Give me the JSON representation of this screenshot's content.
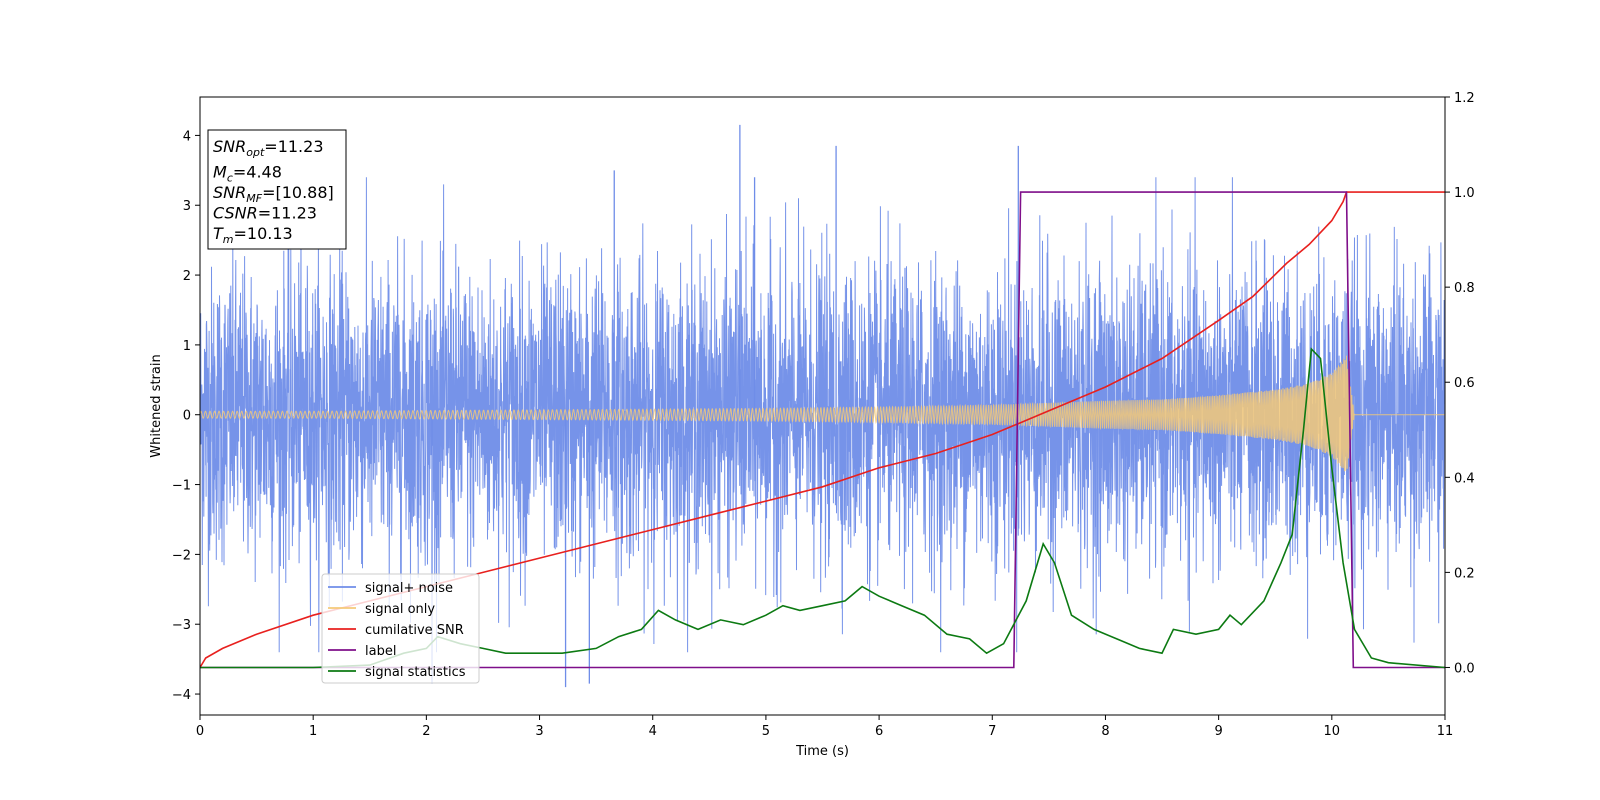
{
  "chart_data": {
    "type": "line",
    "xlabel": "Time (s)",
    "ylabel": "Whitened strain",
    "xlim": [
      0,
      11
    ],
    "ylim_left": [
      -4.3,
      4.55
    ],
    "ylim_right": [
      -0.1,
      1.2
    ],
    "x_ticks": [
      "0",
      "1",
      "2",
      "3",
      "4",
      "5",
      "6",
      "7",
      "8",
      "9",
      "10",
      "11"
    ],
    "y_left_ticks": [
      "−4",
      "−3",
      "−2",
      "−1",
      "0",
      "1",
      "2",
      "3",
      "4"
    ],
    "y_right_ticks": [
      "0.0",
      "0.2",
      "0.4",
      "0.6",
      "0.8",
      "1.0",
      "1.2"
    ],
    "grid": false,
    "legend_position": "lower-left",
    "annotation": {
      "lines": [
        {
          "main": "SNR",
          "sub": "opt",
          "rest": "=11.23"
        },
        {
          "main": "M",
          "sub": "c",
          "rest": "=4.48"
        },
        {
          "main": "SNR",
          "sub": "MF",
          "rest": "=[10.88]"
        },
        {
          "main": "CSNR",
          "sub": "",
          "rest": "=11.23"
        },
        {
          "main": "T",
          "sub": "m",
          "rest": "=10.13"
        }
      ]
    },
    "series": [
      {
        "name": "signal+ noise",
        "axis": "left",
        "color": "#6f8de8",
        "kind": "noise-band",
        "typical_amplitude": 2.2,
        "peak_points": [
          [
            2.05,
            -3.85
          ],
          [
            3.23,
            -3.9
          ],
          [
            3.44,
            -3.85
          ],
          [
            4.77,
            4.15
          ],
          [
            5.62,
            3.85
          ],
          [
            7.23,
            3.85
          ],
          [
            3.66,
            3.5
          ],
          [
            4.9,
            3.4
          ]
        ]
      },
      {
        "name": "signal only",
        "axis": "left",
        "color": "#f5c978",
        "kind": "chirp",
        "x": [
          0,
          1,
          2,
          3,
          4,
          5,
          6,
          7,
          7.5,
          8,
          8.5,
          9,
          9.5,
          9.8,
          10.0,
          10.13,
          10.2,
          11
        ],
        "envelope": [
          0.05,
          0.05,
          0.06,
          0.07,
          0.08,
          0.09,
          0.11,
          0.14,
          0.17,
          0.2,
          0.22,
          0.28,
          0.36,
          0.45,
          0.6,
          0.85,
          0.0,
          0.0
        ]
      },
      {
        "name": "cumilative SNR",
        "axis": "right",
        "color": "#e8201e",
        "x": [
          0,
          0.05,
          0.2,
          0.5,
          1,
          1.5,
          2,
          2.5,
          3,
          3.5,
          4,
          4.5,
          5,
          5.5,
          6,
          6.5,
          7,
          7.5,
          8,
          8.5,
          9,
          9.3,
          9.6,
          9.8,
          10.0,
          10.1,
          10.13,
          11
        ],
        "y": [
          0.0,
          0.02,
          0.04,
          0.07,
          0.11,
          0.14,
          0.17,
          0.2,
          0.23,
          0.26,
          0.29,
          0.32,
          0.35,
          0.38,
          0.42,
          0.45,
          0.49,
          0.54,
          0.59,
          0.65,
          0.73,
          0.78,
          0.85,
          0.89,
          0.94,
          0.98,
          1.0,
          1.0
        ]
      },
      {
        "name": "label",
        "axis": "right",
        "color": "#7f0f8a",
        "x": [
          0,
          7.19,
          7.25,
          10.13,
          10.19,
          11
        ],
        "y": [
          0.0,
          0.0,
          1.0,
          1.0,
          0.0,
          0.0
        ]
      },
      {
        "name": "signal statistics",
        "axis": "right",
        "color": "#0c7a12",
        "x": [
          0,
          0.5,
          1,
          1.5,
          1.8,
          2.0,
          2.1,
          2.3,
          2.5,
          2.7,
          3.0,
          3.2,
          3.5,
          3.7,
          3.9,
          4.05,
          4.2,
          4.4,
          4.6,
          4.8,
          5.0,
          5.15,
          5.3,
          5.5,
          5.7,
          5.85,
          6.0,
          6.2,
          6.4,
          6.6,
          6.8,
          6.95,
          7.1,
          7.3,
          7.45,
          7.55,
          7.7,
          7.9,
          8.1,
          8.3,
          8.5,
          8.6,
          8.8,
          9.0,
          9.1,
          9.2,
          9.4,
          9.55,
          9.65,
          9.75,
          9.82,
          9.9,
          10.0,
          10.1,
          10.2,
          10.35,
          10.5,
          11
        ],
        "y": [
          0.0,
          0.0,
          0.0,
          0.005,
          0.03,
          0.04,
          0.065,
          0.05,
          0.04,
          0.03,
          0.03,
          0.03,
          0.04,
          0.065,
          0.08,
          0.12,
          0.1,
          0.08,
          0.1,
          0.09,
          0.11,
          0.13,
          0.12,
          0.13,
          0.14,
          0.17,
          0.15,
          0.13,
          0.11,
          0.07,
          0.06,
          0.03,
          0.05,
          0.14,
          0.26,
          0.22,
          0.11,
          0.08,
          0.06,
          0.04,
          0.03,
          0.08,
          0.07,
          0.08,
          0.11,
          0.09,
          0.14,
          0.22,
          0.28,
          0.5,
          0.67,
          0.65,
          0.42,
          0.22,
          0.08,
          0.02,
          0.01,
          0.0
        ]
      }
    ]
  }
}
